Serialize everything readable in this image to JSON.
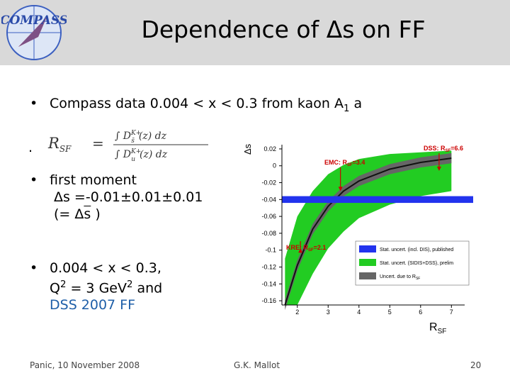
{
  "header": {
    "logo_text": "COMPASS",
    "title": "Dependence of Δs on FF"
  },
  "bullets": {
    "b1": "Compass data 0.004 < x < 0.3 from kaon A",
    "b1_sub": "1",
    "b1_tail": " a",
    "b2_dot": ".",
    "b3_line1": " first moment",
    "b3_line2": "Δs =-0.01±0.01±0.01",
    "b3_line3_a": "(= Δ",
    "b3_line3_s": "s",
    "b3_line3_b": " )",
    "b4_line1": "0.004 < x < 0.3,",
    "b4_line2_a": "Q",
    "b4_line2_sup": "2",
    "b4_line2_b": " = 3 GeV",
    "b4_line2_sup2": "2",
    "b4_line2_c": " and",
    "b4_line3": "DSS 2007 FF"
  },
  "formula": {
    "lhs": "R",
    "lhs_sub": "SF",
    "eq": "=",
    "num": "∫ D",
    "num_sup": "K+",
    "num_sub": "s̄",
    "num_tail": "(z) dz",
    "den": "∫ D",
    "den_sup": "K+",
    "den_sub": "u",
    "den_tail": "(z) dz"
  },
  "chart_data": {
    "type": "line",
    "xlabel": "R",
    "xlabel_sub": "SF",
    "ylabel": "Δs",
    "xlim": [
      1.5,
      7.2
    ],
    "ylim": [
      -0.165,
      0.025
    ],
    "x_ticks": [
      2,
      3,
      4,
      5,
      6,
      7
    ],
    "y_ticks": [
      0.02,
      0,
      -0.02,
      -0.04,
      -0.06,
      -0.08,
      -0.1,
      -0.12,
      -0.14,
      -0.16
    ],
    "y_tick_labels": [
      "0.02",
      "0",
      "-0.02",
      "-0.04",
      "-0.06",
      "-0.08",
      "-0.1",
      "-0.12",
      "-0.14",
      "-0.16"
    ],
    "central_curve": {
      "x": [
        1.6,
        2.0,
        2.5,
        3.0,
        3.5,
        4.0,
        5.0,
        6.0,
        7.0
      ],
      "y": [
        -0.165,
        -0.118,
        -0.075,
        -0.048,
        -0.03,
        -0.018,
        -0.004,
        0.004,
        0.009
      ]
    },
    "gray_band_halfwidth": 0.006,
    "green_band": {
      "upper": [
        -0.11,
        -0.06,
        -0.03,
        -0.01,
        0.001,
        0.008,
        0.014,
        0.016,
        0.018
      ],
      "lower": [
        -0.165,
        -0.165,
        -0.128,
        -0.098,
        -0.078,
        -0.062,
        -0.046,
        -0.036,
        -0.03
      ]
    },
    "blue_band": {
      "center": -0.04,
      "halfwidth": 0.004
    },
    "annotations": [
      {
        "text": "DSS: R",
        "sub": "SF",
        "tail": "=6.6",
        "x": 6.6,
        "y": -0.006
      },
      {
        "text": "EMC: R",
        "sub": "SF",
        "tail": "=3.4",
        "x": 3.4,
        "y": -0.03
      },
      {
        "text": "KRE: R",
        "sub": "SF",
        "tail": "=2.1",
        "x": 2.1,
        "y": -0.098
      }
    ],
    "legend": [
      {
        "label": "Stat. uncert. (incl. DIS), published",
        "color": "#2233ee"
      },
      {
        "label": "Stat. uncert. (SIDIS+DSS), prelim",
        "color": "#22cc22"
      },
      {
        "label": "Uncert. due to R",
        "sub": "SF",
        "color": "#666666"
      }
    ],
    "legend_placement": "bottom-right",
    "colors": {
      "blue": "#2233ee",
      "green": "#22cc22",
      "gray": "#666666",
      "red": "#cc0000"
    }
  },
  "footer": {
    "left": "Panic, 10 November 2008",
    "center": "G.K. Mallot",
    "right": "20"
  }
}
